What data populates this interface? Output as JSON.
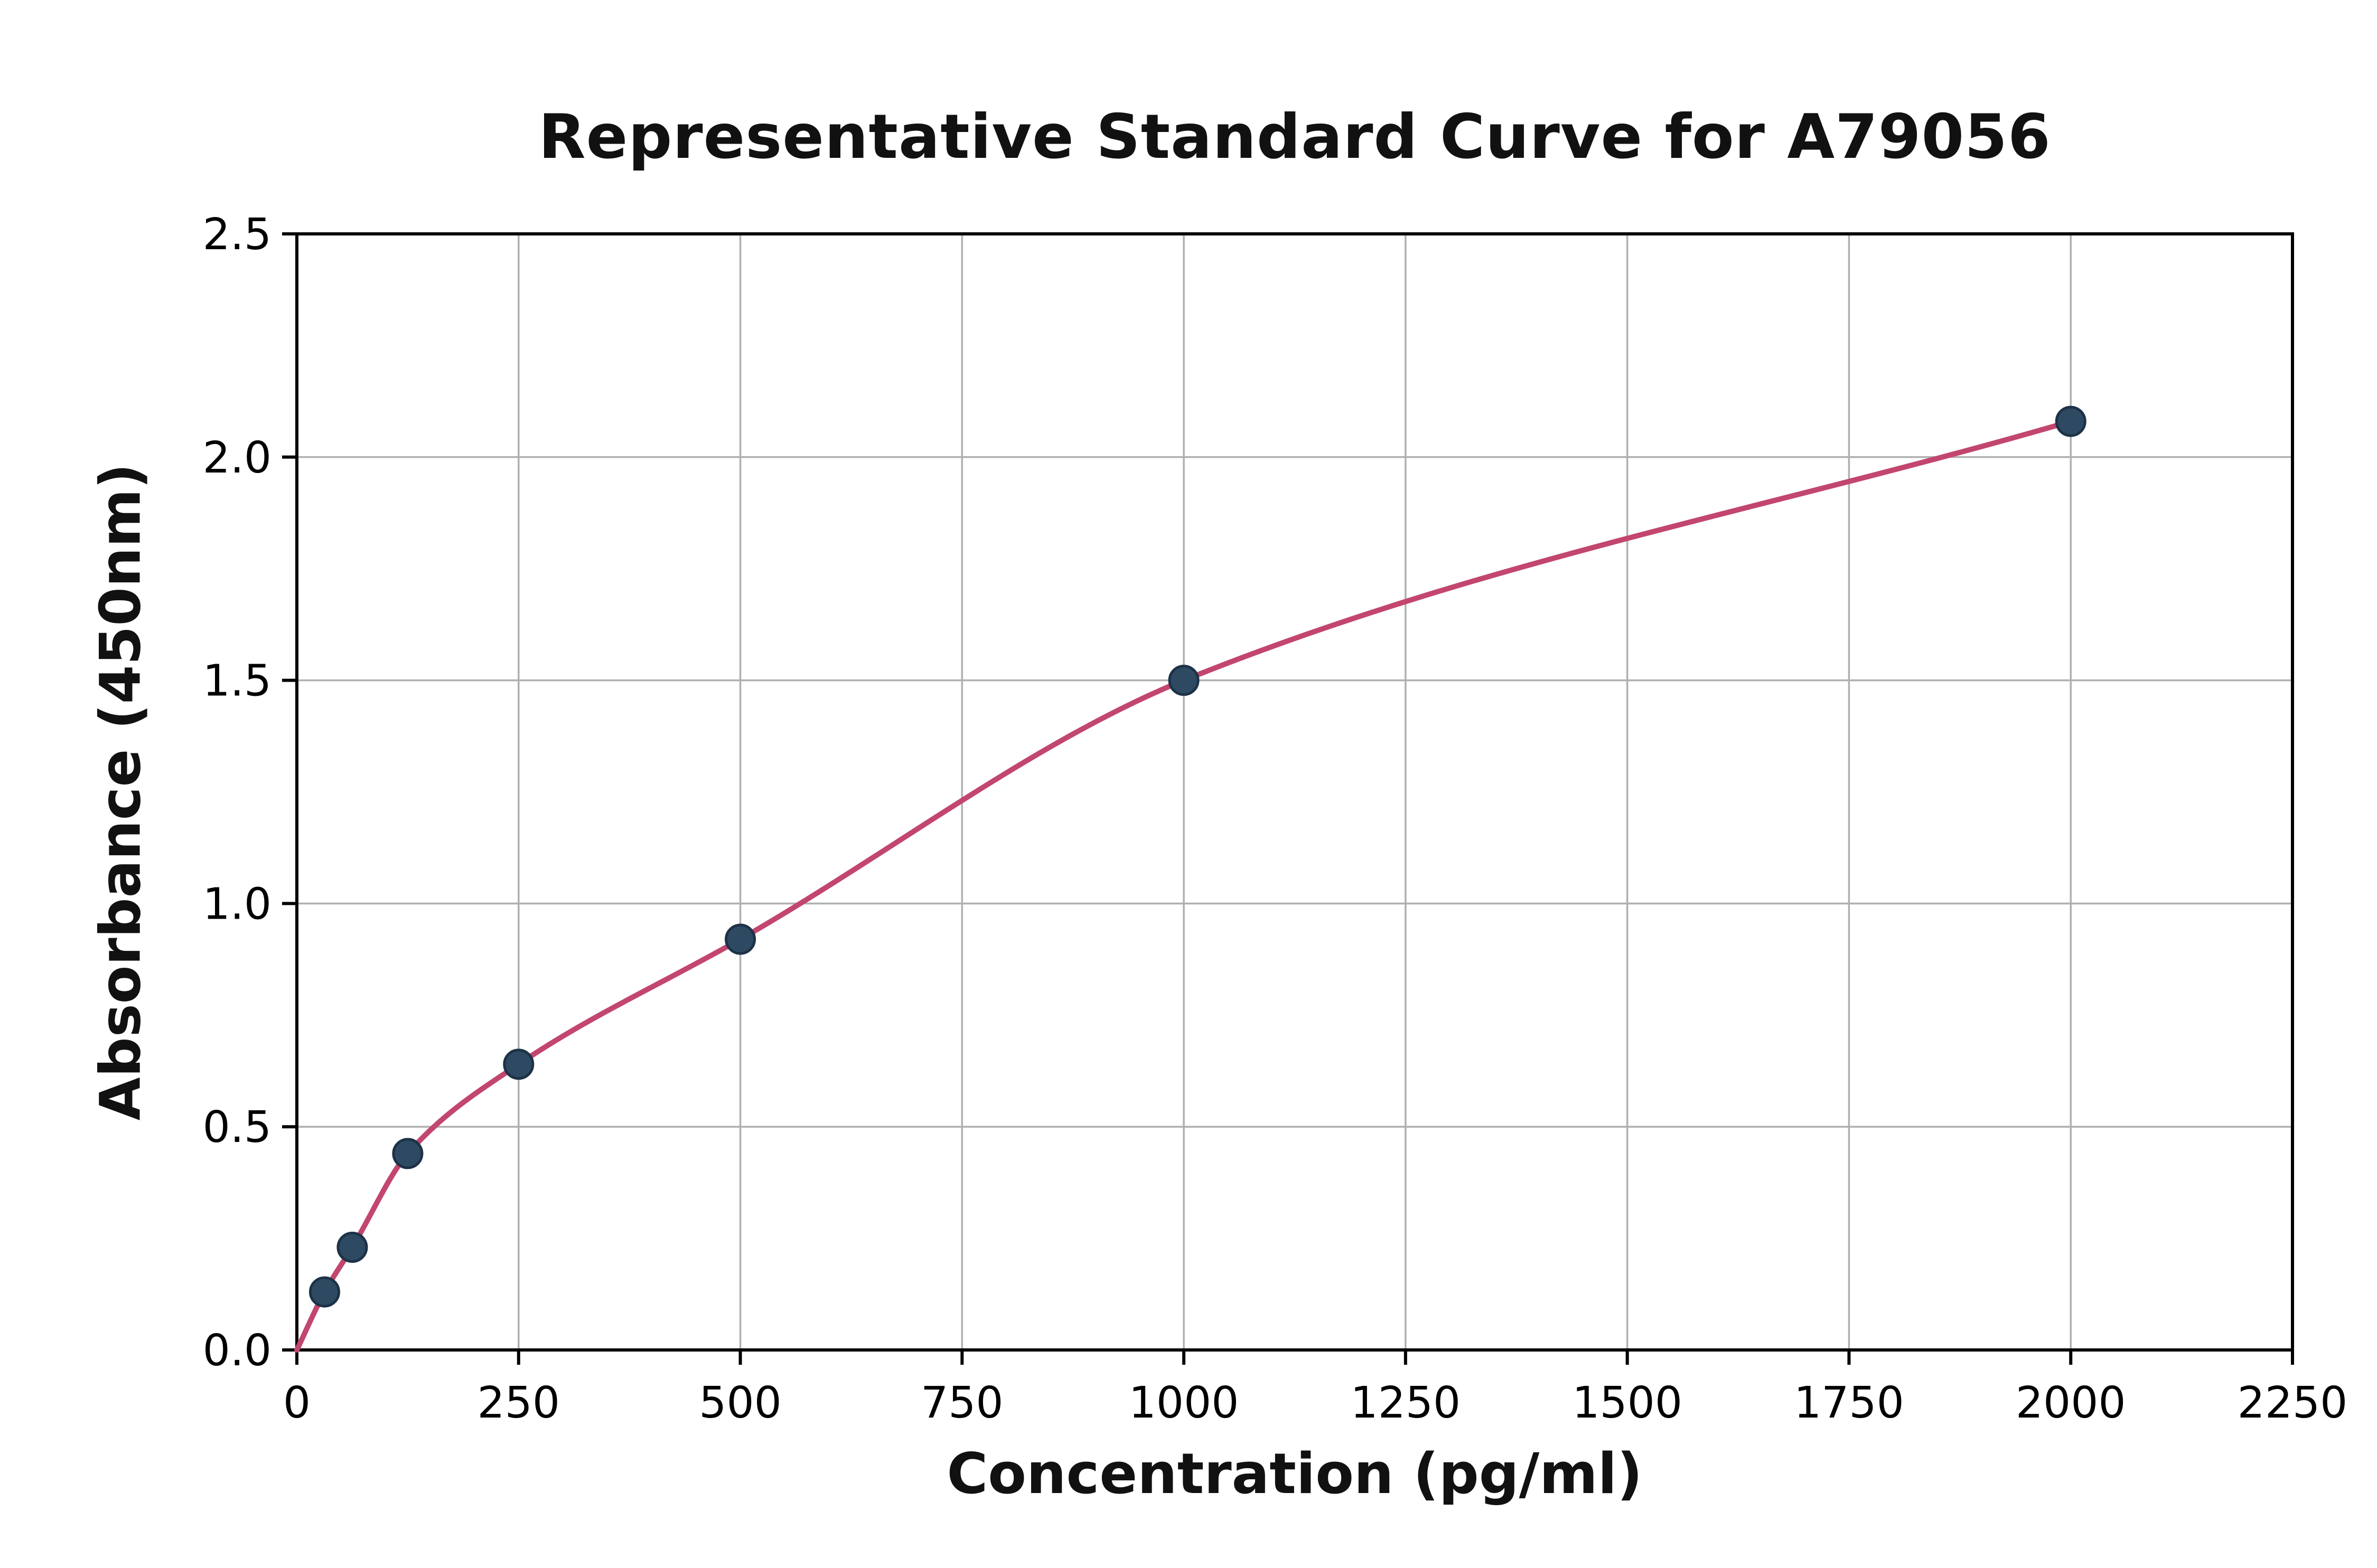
{
  "chart_data": {
    "type": "scatter",
    "title": "Representative Standard Curve for A79056",
    "xlabel": "Concentration (pg/ml)",
    "ylabel": "Absorbance (450nm)",
    "xlim": [
      0,
      2250
    ],
    "ylim": [
      0,
      2.5
    ],
    "xticks": [
      0,
      250,
      500,
      750,
      1000,
      1250,
      1500,
      1750,
      2000,
      2250
    ],
    "xtick_labels": [
      "0",
      "250",
      "500",
      "750",
      "1000",
      "1250",
      "1500",
      "1750",
      "2000",
      "2250"
    ],
    "yticks": [
      0,
      0.5,
      1.0,
      1.5,
      2.0,
      2.5
    ],
    "ytick_labels": [
      "0.0",
      "0.5",
      "1.0",
      "1.5",
      "2.0",
      "2.5"
    ],
    "grid": true,
    "legend": "none",
    "series": [
      {
        "name": "standard-data-points",
        "type": "scatter",
        "x": [
          31.25,
          62.5,
          125,
          250,
          500,
          1000,
          2000
        ],
        "y": [
          0.13,
          0.23,
          0.44,
          0.64,
          0.92,
          1.5,
          2.08
        ]
      },
      {
        "name": "fitted-standard-curve",
        "type": "line",
        "x": [
          0,
          31.25,
          62.5,
          125,
          250,
          500,
          1000,
          2000
        ],
        "y": [
          0.0,
          0.13,
          0.23,
          0.44,
          0.64,
          0.92,
          1.5,
          2.08
        ]
      }
    ],
    "colors": {
      "curve": "#c2466e",
      "point_fill": "#2e4a63",
      "point_edge": "#1d3247",
      "grid": "#b0b0b0",
      "frame": "#000000",
      "text": "#000000",
      "background": "#ffffff"
    }
  }
}
